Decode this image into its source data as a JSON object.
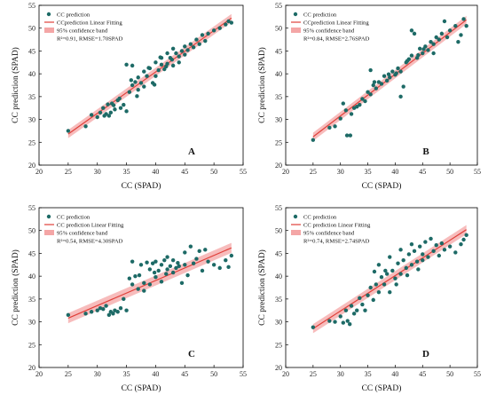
{
  "chart_data": [
    {
      "panel": "A",
      "type": "scatter",
      "xlabel": "CC (SPAD)",
      "ylabel": "CC prediction (SPAD)",
      "xlim": [
        20,
        55
      ],
      "ylim": [
        20,
        55
      ],
      "xticks": [
        "20",
        "25",
        "30",
        "35",
        "40",
        "45",
        "50",
        "55"
      ],
      "yticks": [
        "20",
        "25",
        "30",
        "35",
        "40",
        "45",
        "50",
        "55"
      ],
      "legend": {
        "position": "top-left",
        "entries": [
          "CC prediction",
          "CCprediction Linear Fitting",
          "95% confidence band"
        ],
        "stats": "R²=0.91, RMSE=1.70SPAD"
      },
      "fit": {
        "x": [
          25,
          53
        ],
        "y": [
          26.8,
          52.2
        ],
        "band": 0.9
      },
      "points": [
        [
          25,
          27.5
        ],
        [
          28,
          28.5
        ],
        [
          29,
          31
        ],
        [
          30,
          30.5
        ],
        [
          30.5,
          31.5
        ],
        [
          31,
          32.5
        ],
        [
          31.2,
          30.8
        ],
        [
          31.5,
          31.2
        ],
        [
          31.8,
          33.3
        ],
        [
          32,
          30.8
        ],
        [
          32.3,
          31.5
        ],
        [
          32.5,
          33.5
        ],
        [
          33,
          32.2
        ],
        [
          33.5,
          34.2
        ],
        [
          34,
          32.5
        ],
        [
          34.5,
          33.2
        ],
        [
          35,
          31.8
        ],
        [
          35,
          42
        ],
        [
          35.5,
          36
        ],
        [
          36,
          37.5
        ],
        [
          36,
          41.8
        ],
        [
          36.5,
          38.2
        ],
        [
          37,
          36.5
        ],
        [
          37,
          39.2
        ],
        [
          37.5,
          38
        ],
        [
          38,
          40.5
        ],
        [
          38,
          37.2
        ],
        [
          38.5,
          39.5
        ],
        [
          39,
          41.2
        ],
        [
          39.5,
          38
        ],
        [
          40,
          42.5
        ],
        [
          40,
          39.5
        ],
        [
          40.5,
          40.8
        ],
        [
          41,
          43.5
        ],
        [
          41,
          42
        ],
        [
          41.5,
          41
        ],
        [
          42,
          44.5
        ],
        [
          42,
          42.2
        ],
        [
          42.5,
          43.5
        ],
        [
          43,
          41.8
        ],
        [
          43,
          45.5
        ],
        [
          43.5,
          44.5
        ],
        [
          44,
          43.8
        ],
        [
          44,
          42.5
        ],
        [
          44.5,
          45
        ],
        [
          45,
          44.2
        ],
        [
          45,
          46
        ],
        [
          45.5,
          45.2
        ],
        [
          46,
          46.5
        ],
        [
          46.5,
          45.8
        ],
        [
          47,
          47.5
        ],
        [
          47.5,
          46.5
        ],
        [
          48,
          48.5
        ],
        [
          48.5,
          47.2
        ],
        [
          49,
          48.8
        ],
        [
          50,
          49.5
        ],
        [
          51,
          50
        ],
        [
          52,
          50.8
        ],
        [
          52.5,
          51.5
        ],
        [
          53,
          51.2
        ],
        [
          38.8,
          41.3
        ],
        [
          39.8,
          37.6
        ],
        [
          40.8,
          43.6
        ],
        [
          41.8,
          41.6
        ],
        [
          42.8,
          43.1
        ],
        [
          35.8,
          38.6
        ],
        [
          36.8,
          35.1
        ],
        [
          33.8,
          34.6
        ],
        [
          32.8,
          33.1
        ]
      ]
    },
    {
      "panel": "B",
      "type": "scatter",
      "xlabel": "CC (SPAD)",
      "ylabel": "CC prediction (SPAD)",
      "xlim": [
        20,
        55
      ],
      "ylim": [
        20,
        55
      ],
      "xticks": [
        "20",
        "25",
        "30",
        "35",
        "40",
        "45",
        "50",
        "55"
      ],
      "yticks": [
        "20",
        "25",
        "30",
        "35",
        "40",
        "45",
        "50",
        "55"
      ],
      "legend": {
        "position": "top-left",
        "entries": [
          "CC prediction",
          "CCprediction Linear Fitting",
          "95% confidence band"
        ],
        "stats": "R²=0.84, RMSE=2.76SPAD"
      },
      "fit": {
        "x": [
          25,
          53
        ],
        "y": [
          26.2,
          51.8
        ],
        "band": 0.9
      },
      "points": [
        [
          25,
          25.5
        ],
        [
          28,
          28.2
        ],
        [
          29,
          28.5
        ],
        [
          30,
          30.2
        ],
        [
          30.5,
          33.5
        ],
        [
          31,
          32
        ],
        [
          31.2,
          26.5
        ],
        [
          31.8,
          26.5
        ],
        [
          32,
          31.2
        ],
        [
          32.5,
          32.5
        ],
        [
          33,
          32.8
        ],
        [
          33.5,
          33.2
        ],
        [
          34,
          34.5
        ],
        [
          34.5,
          34
        ],
        [
          35,
          36
        ],
        [
          35.5,
          35.5
        ],
        [
          35.5,
          40.8
        ],
        [
          36,
          37.5
        ],
        [
          36.5,
          36.8
        ],
        [
          37,
          38.2
        ],
        [
          37.5,
          37.8
        ],
        [
          38,
          39.5
        ],
        [
          38.5,
          38.5
        ],
        [
          39,
          39.2
        ],
        [
          39.5,
          40.5
        ],
        [
          40,
          39.8
        ],
        [
          40.5,
          41.2
        ],
        [
          41,
          40.5
        ],
        [
          41.5,
          37.2
        ],
        [
          41,
          35
        ],
        [
          42,
          42.5
        ],
        [
          42.5,
          43.2
        ],
        [
          43,
          44
        ],
        [
          43,
          49.5
        ],
        [
          43.5,
          48.8
        ],
        [
          44,
          43.5
        ],
        [
          44.5,
          45.5
        ],
        [
          45,
          44.5
        ],
        [
          45.5,
          46
        ],
        [
          46,
          45.2
        ],
        [
          46.5,
          47
        ],
        [
          47,
          46.5
        ],
        [
          47,
          44.5
        ],
        [
          47.5,
          48
        ],
        [
          48,
          47.5
        ],
        [
          48.5,
          48.8
        ],
        [
          49,
          51.5
        ],
        [
          49.5,
          48
        ],
        [
          50,
          49.5
        ],
        [
          51,
          50.5
        ],
        [
          51.5,
          47
        ],
        [
          52,
          48.5
        ],
        [
          52.5,
          52
        ],
        [
          53,
          50.5
        ],
        [
          36.2,
          38.2
        ],
        [
          38.8,
          39.9
        ],
        [
          40.2,
          40.1
        ],
        [
          42.2,
          42.8
        ],
        [
          44.2,
          44.1
        ],
        [
          45.2,
          45.4
        ]
      ]
    },
    {
      "panel": "C",
      "type": "scatter",
      "xlabel": "CC (SPAD)",
      "ylabel": "CC prediction (SPAD)",
      "xlim": [
        20,
        55
      ],
      "ylim": [
        20,
        55
      ],
      "xticks": [
        "20",
        "25",
        "30",
        "35",
        "40",
        "45",
        "50",
        "55"
      ],
      "yticks": [
        "20",
        "25",
        "30",
        "35",
        "40",
        "45",
        "50",
        "55"
      ],
      "legend": {
        "position": "top-left",
        "entries": [
          "CC prediction",
          "CC prediction Linear Fitting",
          "95% confidence band"
        ],
        "stats": "R²=0.54, RMSE=4.30SPAD"
      },
      "fit": {
        "x": [
          25,
          53
        ],
        "y": [
          30.8,
          46.2
        ],
        "band": 1.1
      },
      "points": [
        [
          25,
          31.5
        ],
        [
          28,
          31.8
        ],
        [
          29,
          32.2
        ],
        [
          30,
          32.5
        ],
        [
          30.5,
          33
        ],
        [
          31,
          32.8
        ],
        [
          31.5,
          33.5
        ],
        [
          32,
          31.5
        ],
        [
          32.3,
          32.2
        ],
        [
          32.7,
          31.8
        ],
        [
          33,
          32.5
        ],
        [
          33.5,
          32.2
        ],
        [
          34,
          33
        ],
        [
          34.5,
          35
        ],
        [
          35,
          32.5
        ],
        [
          35.5,
          39.5
        ],
        [
          36,
          38.2
        ],
        [
          36,
          43.2
        ],
        [
          36.5,
          40
        ],
        [
          37,
          37.2
        ],
        [
          37.5,
          42.5
        ],
        [
          38,
          38.5
        ],
        [
          38,
          36.8
        ],
        [
          38.5,
          43
        ],
        [
          39,
          41.5
        ],
        [
          39,
          38.2
        ],
        [
          39.5,
          42.8
        ],
        [
          40,
          43.2
        ],
        [
          40,
          39.8
        ],
        [
          40.5,
          41.2
        ],
        [
          41,
          42.5
        ],
        [
          41,
          38.8
        ],
        [
          41.5,
          43.5
        ],
        [
          42,
          41.5
        ],
        [
          42,
          44.2
        ],
        [
          42.5,
          42.2
        ],
        [
          43,
          43.5
        ],
        [
          43,
          40.8
        ],
        [
          43.5,
          41.8
        ],
        [
          44,
          42.2
        ],
        [
          44.5,
          38.5
        ],
        [
          45,
          42.5
        ],
        [
          45,
          45.2
        ],
        [
          45.5,
          40.2
        ],
        [
          46,
          46.5
        ],
        [
          46.5,
          42.8
        ],
        [
          47,
          43.8
        ],
        [
          47.5,
          45.5
        ],
        [
          48,
          41.2
        ],
        [
          48.5,
          45.8
        ],
        [
          49,
          43.2
        ],
        [
          50,
          42.5
        ],
        [
          51,
          41.8
        ],
        [
          52,
          43.5
        ],
        [
          52.5,
          42
        ],
        [
          53,
          44.5
        ],
        [
          37.2,
          40.2
        ],
        [
          39.8,
          40.8
        ],
        [
          41.8,
          40.5
        ],
        [
          43.8,
          42.9
        ]
      ]
    },
    {
      "panel": "D",
      "type": "scatter",
      "xlabel": "CC (SPAD)",
      "ylabel": "CC prediction (SPAD)",
      "xlim": [
        20,
        55
      ],
      "ylim": [
        20,
        55
      ],
      "xticks": [
        "20",
        "25",
        "30",
        "35",
        "40",
        "45",
        "50",
        "55"
      ],
      "yticks": [
        "20",
        "25",
        "30",
        "35",
        "40",
        "45",
        "50",
        "55"
      ],
      "legend": {
        "position": "top-left",
        "entries": [
          "CC prediction",
          "CC prediction Linear Fitting",
          "95% confidence band"
        ],
        "stats": "R²=0.74, RMSE=2.74SPAD"
      },
      "fit": {
        "x": [
          25,
          53
        ],
        "y": [
          28.5,
          50.2
        ],
        "band": 1.0
      },
      "points": [
        [
          25,
          28.8
        ],
        [
          28,
          30.2
        ],
        [
          29,
          30
        ],
        [
          30,
          31.2
        ],
        [
          30.5,
          29.8
        ],
        [
          31,
          32.5
        ],
        [
          31.3,
          30.2
        ],
        [
          31.7,
          29.5
        ],
        [
          32,
          33.5
        ],
        [
          32.5,
          31.8
        ],
        [
          33,
          32.5
        ],
        [
          33.5,
          35.2
        ],
        [
          34,
          33.8
        ],
        [
          34.5,
          32.5
        ],
        [
          35,
          35.8
        ],
        [
          35.5,
          37.5
        ],
        [
          36,
          34.8
        ],
        [
          36.5,
          38.2
        ],
        [
          37,
          36.5
        ],
        [
          37.5,
          39.8
        ],
        [
          38,
          38.2
        ],
        [
          38.5,
          40.5
        ],
        [
          39,
          36.5
        ],
        [
          39.5,
          41.2
        ],
        [
          40,
          39.5
        ],
        [
          40.5,
          42.8
        ],
        [
          41,
          40.5
        ],
        [
          41.5,
          43.5
        ],
        [
          42,
          41.8
        ],
        [
          42.5,
          44.8
        ],
        [
          43,
          42.5
        ],
        [
          43.5,
          45.5
        ],
        [
          44,
          43.2
        ],
        [
          44.5,
          46.5
        ],
        [
          45,
          44.8
        ],
        [
          45.5,
          47.5
        ],
        [
          46,
          44.2
        ],
        [
          46.5,
          48.2
        ],
        [
          47,
          45.5
        ],
        [
          47.5,
          46.8
        ],
        [
          48,
          44.5
        ],
        [
          48.5,
          47.2
        ],
        [
          49,
          45.8
        ],
        [
          50,
          46.5
        ],
        [
          51,
          45.2
        ],
        [
          52,
          47
        ],
        [
          52.5,
          48
        ],
        [
          53,
          49
        ],
        [
          37,
          42.5
        ],
        [
          39,
          44.2
        ],
        [
          41,
          45.8
        ],
        [
          43,
          47
        ],
        [
          45,
          43.5
        ],
        [
          36.2,
          41
        ],
        [
          38.2,
          41.2
        ],
        [
          40.2,
          38.2
        ],
        [
          42.2,
          40.2
        ],
        [
          44.2,
          41.5
        ]
      ]
    }
  ]
}
